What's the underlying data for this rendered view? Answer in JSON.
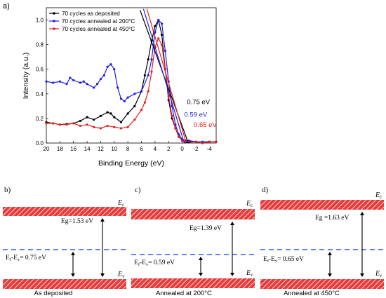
{
  "figure": {
    "panel_a_label": "a)",
    "panel_b_label": "b)",
    "panel_c_label": "c)",
    "panel_d_label": "d)"
  },
  "chart_data": {
    "type": "line",
    "xlabel": "Binding Energy (eV)",
    "ylabel": "Intensity (a.u.)",
    "xlim": [
      20,
      -5
    ],
    "ylim": [
      0,
      1.1
    ],
    "x_reversed": true,
    "xticks": [
      20,
      18,
      16,
      14,
      12,
      10,
      8,
      6,
      4,
      2,
      0,
      -2,
      -4
    ],
    "xtick_labels": [
      "20",
      "18",
      "16",
      "14",
      "12",
      "10",
      "8",
      "6",
      "4",
      "2",
      "0",
      "-2",
      "-4"
    ],
    "yticks": [
      0.0,
      0.2,
      0.4,
      0.6,
      0.8,
      1.0
    ],
    "ytick_labels": [
      "0.0",
      "0.2",
      "0.4",
      "0.6",
      "0.8",
      "1.0"
    ],
    "grid": false,
    "legend_position": "top-left",
    "series": [
      {
        "name": "70 cycles as deposited",
        "color": "#000000",
        "x": [
          20,
          19,
          18,
          17,
          16,
          15,
          14,
          13,
          12,
          11,
          10.5,
          10,
          9,
          8,
          7,
          6,
          5.5,
          5,
          4.5,
          4,
          3.5,
          3,
          2.5,
          2,
          1.5,
          1,
          0.5,
          0,
          -0.5,
          -1,
          -2,
          -3,
          -4,
          -5
        ],
        "y": [
          0.17,
          0.16,
          0.15,
          0.155,
          0.16,
          0.18,
          0.21,
          0.19,
          0.22,
          0.25,
          0.24,
          0.21,
          0.17,
          0.24,
          0.3,
          0.42,
          0.55,
          0.68,
          0.83,
          0.95,
          1.0,
          0.88,
          0.6,
          0.35,
          0.2,
          0.12,
          0.05,
          0.02,
          0.01,
          0.01,
          0.01,
          0.0,
          0.01,
          0.01
        ]
      },
      {
        "name": "70 cycles annealed at 200°C",
        "color": "#1f1fe6",
        "x": [
          20,
          19,
          18,
          17,
          16.5,
          16,
          15,
          14.5,
          14,
          13,
          12.5,
          12,
          11.5,
          11,
          10.5,
          10,
          9.5,
          9,
          8.5,
          8,
          7,
          6,
          5,
          4.5,
          4,
          3.5,
          3,
          2.5,
          2,
          1.5,
          1,
          0.5,
          0,
          -0.5,
          -1,
          -2,
          -3,
          -4,
          -5
        ],
        "y": [
          0.5,
          0.49,
          0.5,
          0.48,
          0.53,
          0.51,
          0.49,
          0.5,
          0.48,
          0.45,
          0.48,
          0.52,
          0.55,
          0.62,
          0.64,
          0.6,
          0.45,
          0.36,
          0.34,
          0.37,
          0.4,
          0.42,
          0.55,
          0.68,
          0.9,
          1.0,
          0.97,
          0.75,
          0.5,
          0.3,
          0.15,
          0.07,
          0.03,
          0.02,
          0.02,
          0.01,
          0.01,
          0.01,
          0.01
        ]
      },
      {
        "name": "70 cycles annealed at 450°C",
        "color": "#e81c1c",
        "x": [
          20,
          19,
          18,
          17,
          16,
          15,
          14,
          13,
          12,
          11,
          10,
          9,
          8,
          7,
          6,
          5.5,
          5,
          4.5,
          4,
          3.5,
          3,
          2.5,
          2,
          1.5,
          1,
          0.5,
          0,
          -0.5,
          -1,
          -2,
          -3,
          -4,
          -5
        ],
        "y": [
          0.16,
          0.16,
          0.15,
          0.15,
          0.16,
          0.14,
          0.15,
          0.13,
          0.12,
          0.14,
          0.13,
          0.12,
          0.13,
          0.19,
          0.27,
          0.33,
          0.42,
          0.58,
          0.78,
          0.85,
          0.8,
          0.6,
          0.38,
          0.22,
          0.12,
          0.05,
          0.02,
          0.01,
          0.01,
          0.01,
          0.0,
          0.01,
          0.01
        ]
      }
    ],
    "annotations": [
      {
        "text": "0.75 eV",
        "color": "#000000",
        "x": -0.7,
        "y": 0.315
      },
      {
        "text": "0.59 eV",
        "color": "#1f1fe6",
        "x": -0.3,
        "y": 0.215
      },
      {
        "text": "0.65 eV",
        "color": "#e81c1c",
        "x": -1.7,
        "y": 0.13
      }
    ]
  },
  "diagrams": [
    {
      "label": "b)",
      "caption": "As deposited",
      "ec": "E",
      "ec_sub": "c",
      "ev": "E",
      "ev_sub": "v",
      "eg_text": "Eg=1.53 eV",
      "ef_pre": "E",
      "ef_sub1": "f",
      "ef_mid": "-E",
      "ef_sub2": "v",
      "ef_post": "= 0.75 eV"
    },
    {
      "label": "c)",
      "caption": "Annealed at 200°C",
      "ec": "E",
      "ec_sub": "c",
      "ev": "E",
      "ev_sub": "v",
      "eg_text": "Eg=1.39 eV",
      "ef_pre": "E",
      "ef_sub1": "f",
      "ef_mid": "-E",
      "ef_sub2": "v",
      "ef_post": "= 0.59 eV"
    },
    {
      "label": "d)",
      "caption": "Annealed at 450°C",
      "ec": "E",
      "ec_sub": "c",
      "ev": "E",
      "ev_sub": "v",
      "eg_text": "Eg =1.63 eV",
      "ef_pre": "E",
      "ef_sub1": "f",
      "ef_mid": "-E",
      "ef_sub2": "v",
      "ef_post": "= 0.65 eV"
    }
  ]
}
